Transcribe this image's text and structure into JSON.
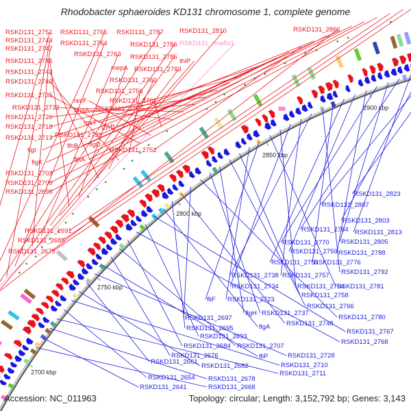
{
  "title": "Rhodobacter sphaeroides KD131 chromosome 1, complete genome",
  "accession": "Accession: NC_011963",
  "stats": "Topology: circular; Length: 3,152,792 bp; Genes: 3,143",
  "colors": {
    "forward": "#e8141c",
    "reverse": "#1818e0",
    "rna": "#ff88cc",
    "backbone": "#999999",
    "tick": "#2b8a2b"
  },
  "kbp_ticks": [
    "2700 kbp",
    "2750 kbp",
    "2800 kbp",
    "2850 kbp",
    "2900 kbp"
  ],
  "forward_labels": [
    "RSKD131_2751",
    "RSKD131_2765",
    "RSKD131_2787",
    "RSKD131_2810",
    "RSKD131_2866",
    "RSKD131_rrna5s1",
    "RSKD131_2749",
    "RSKD131_2764",
    "RSKD131_2786",
    "RSKD131_2747",
    "RSKD131_2763",
    "RSKD131_2785",
    "thiP",
    "RSKD131_2745",
    "mepA",
    "RSKD131_2783",
    "RSKD131_2743",
    "RSKD131_2760",
    "RSKD131_2740",
    "RSKD131_2756",
    "RSKD131_2735",
    "recF",
    "RSKD131_2761",
    "dnaA",
    "RSKD131_2732",
    "RSKD131_2755",
    "RSKD131_2720",
    "rpsT",
    "gyrB",
    "RSKD131_2718",
    "RSKD131_2739",
    "RSKD131_2713",
    "flhB",
    "flgD",
    "RSKD131_2752",
    "flgI",
    "flhA",
    "flgK",
    "RSKD131_2703",
    "RSKD131_2700",
    "RSKD131_2698",
    "RSKD131_2691",
    "RSKD131_2685",
    "RSKD131_2675"
  ],
  "reverse_labels": [
    "RSKD131_2823",
    "RSKD131_2807",
    "RSKD131_2803",
    "RSKD131_2813",
    "RSKD131_2784",
    "RSKD131_2805",
    "RSKD131_2770",
    "RSKD131_2788",
    "RSKD131_2759",
    "RSKD131_2753",
    "RSKD131_2776",
    "RSKD131_2792",
    "RSKD131_2738",
    "RSKD131_2757",
    "RSKD131_2734",
    "RSKD131_2754",
    "RSKD131_2781",
    "fliF",
    "RSKD131_2723",
    "RSKD131_2758",
    "RSKD131_2766",
    "flgH",
    "RSKD131_2737",
    "RSKD131_2780",
    "RSKD131_2697",
    "RSKD131_2748",
    "RSKD131_2695",
    "flgA",
    "RSKD131_2767",
    "RSKD131_2693",
    "RSKD131_2768",
    "RSKD131_2684",
    "RSKD131_2707",
    "RSKD131_2676",
    "fliP",
    "RSKD131_2728",
    "RSKD131_2661",
    "RSKD131_2682",
    "RSKD131_2710",
    "RSKD131_2654",
    "RSKD131_2711",
    "RSKD131_2678",
    "RSKD131_2641",
    "RSKD131_2668"
  ]
}
